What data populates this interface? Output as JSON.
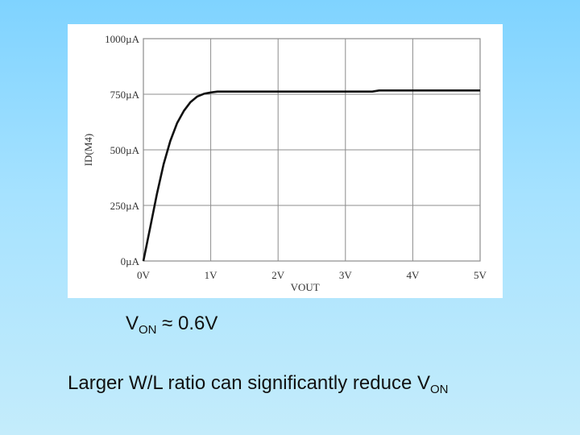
{
  "chart_data": {
    "type": "line",
    "xlabel": "VOUT",
    "ylabel": "ID(M4)",
    "xlim": [
      0,
      5
    ],
    "ylim": [
      0,
      1000
    ],
    "grid": true,
    "x_ticks": [
      "0V",
      "1V",
      "2V",
      "3V",
      "4V",
      "5V"
    ],
    "y_ticks": [
      "0µA",
      "250µA",
      "500µA",
      "750µA",
      "1000µA"
    ],
    "series": [
      {
        "x": [
          0,
          0.1,
          0.2,
          0.3,
          0.4,
          0.5,
          0.6,
          0.7,
          0.8,
          0.9,
          1.0,
          1.1,
          1.2,
          2.0,
          3.0,
          3.4,
          3.5,
          4.0,
          5.0
        ],
        "y": [
          0,
          150,
          300,
          435,
          540,
          620,
          675,
          715,
          740,
          752,
          758,
          762,
          762,
          762,
          762,
          762,
          767,
          767,
          767
        ]
      }
    ],
    "line_color": "#111111"
  },
  "caption_von": {
    "main": "V",
    "sub": "ON",
    "rest": " ≈ 0.6V"
  },
  "caption_wl": {
    "main": "Larger W/L ratio can significantly reduce V",
    "sub": "ON"
  }
}
